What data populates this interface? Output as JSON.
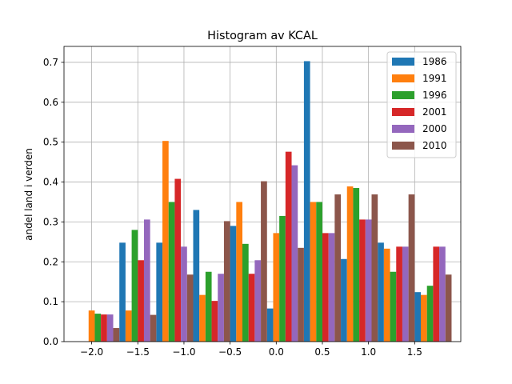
{
  "chart_data": {
    "type": "bar",
    "title": "Histogram av KCAL",
    "xlabel": "",
    "ylabel": "andel land i verden",
    "xlim": [
      -2.3,
      2.0
    ],
    "ylim": [
      0,
      0.74
    ],
    "xticks": [
      -2.0,
      -1.5,
      -1.0,
      -0.5,
      0.0,
      0.5,
      1.0,
      1.5
    ],
    "xtick_labels": [
      "−2.0",
      "−1.5",
      "−1.0",
      "−0.5",
      "0.0",
      "0.5",
      "1.0",
      "1.5"
    ],
    "yticks": [
      0.0,
      0.1,
      0.2,
      0.3,
      0.4,
      0.5,
      0.6,
      0.7
    ],
    "ytick_labels": [
      "0.0",
      "0.1",
      "0.2",
      "0.3",
      "0.4",
      "0.5",
      "0.6",
      "0.7"
    ],
    "grid": true,
    "legend_position": "top-right",
    "bin_width": 0.4,
    "bins": [
      -2.1,
      -1.7,
      -1.3,
      -0.9,
      -0.5,
      -0.1,
      0.3,
      0.7,
      1.1,
      1.5
    ],
    "series": [
      {
        "name": "1986",
        "color": "#1f77b4",
        "values": [
          0,
          0.248,
          0.248,
          0.33,
          0.29,
          0.083,
          0.703,
          0.207,
          0.248,
          0.124
        ]
      },
      {
        "name": "1991",
        "color": "#ff7f0e",
        "values": [
          0.078,
          0.078,
          0.503,
          0.117,
          0.35,
          0.272,
          0.35,
          0.389,
          0.233,
          0.117
        ]
      },
      {
        "name": "1996",
        "color": "#2ca02c",
        "values": [
          0.07,
          0.28,
          0.35,
          0.175,
          0.245,
          0.315,
          0.35,
          0.385,
          0.175,
          0.14
        ]
      },
      {
        "name": "2001",
        "color": "#d62728",
        "values": [
          0.068,
          0.204,
          0.408,
          0.102,
          0.17,
          0.476,
          0.272,
          0.306,
          0.238,
          0.238
        ]
      },
      {
        "name": "2000",
        "color": "#9467bd",
        "values": [
          0.068,
          0.306,
          0.238,
          0.17,
          0.204,
          0.442,
          0.272,
          0.306,
          0.238,
          0.238
        ]
      },
      {
        "name": "2010",
        "color": "#8c564b",
        "values": [
          0.034,
          0.067,
          0.168,
          0.302,
          0.402,
          0.235,
          0.369,
          0.369,
          0.369,
          0.168
        ]
      }
    ]
  }
}
